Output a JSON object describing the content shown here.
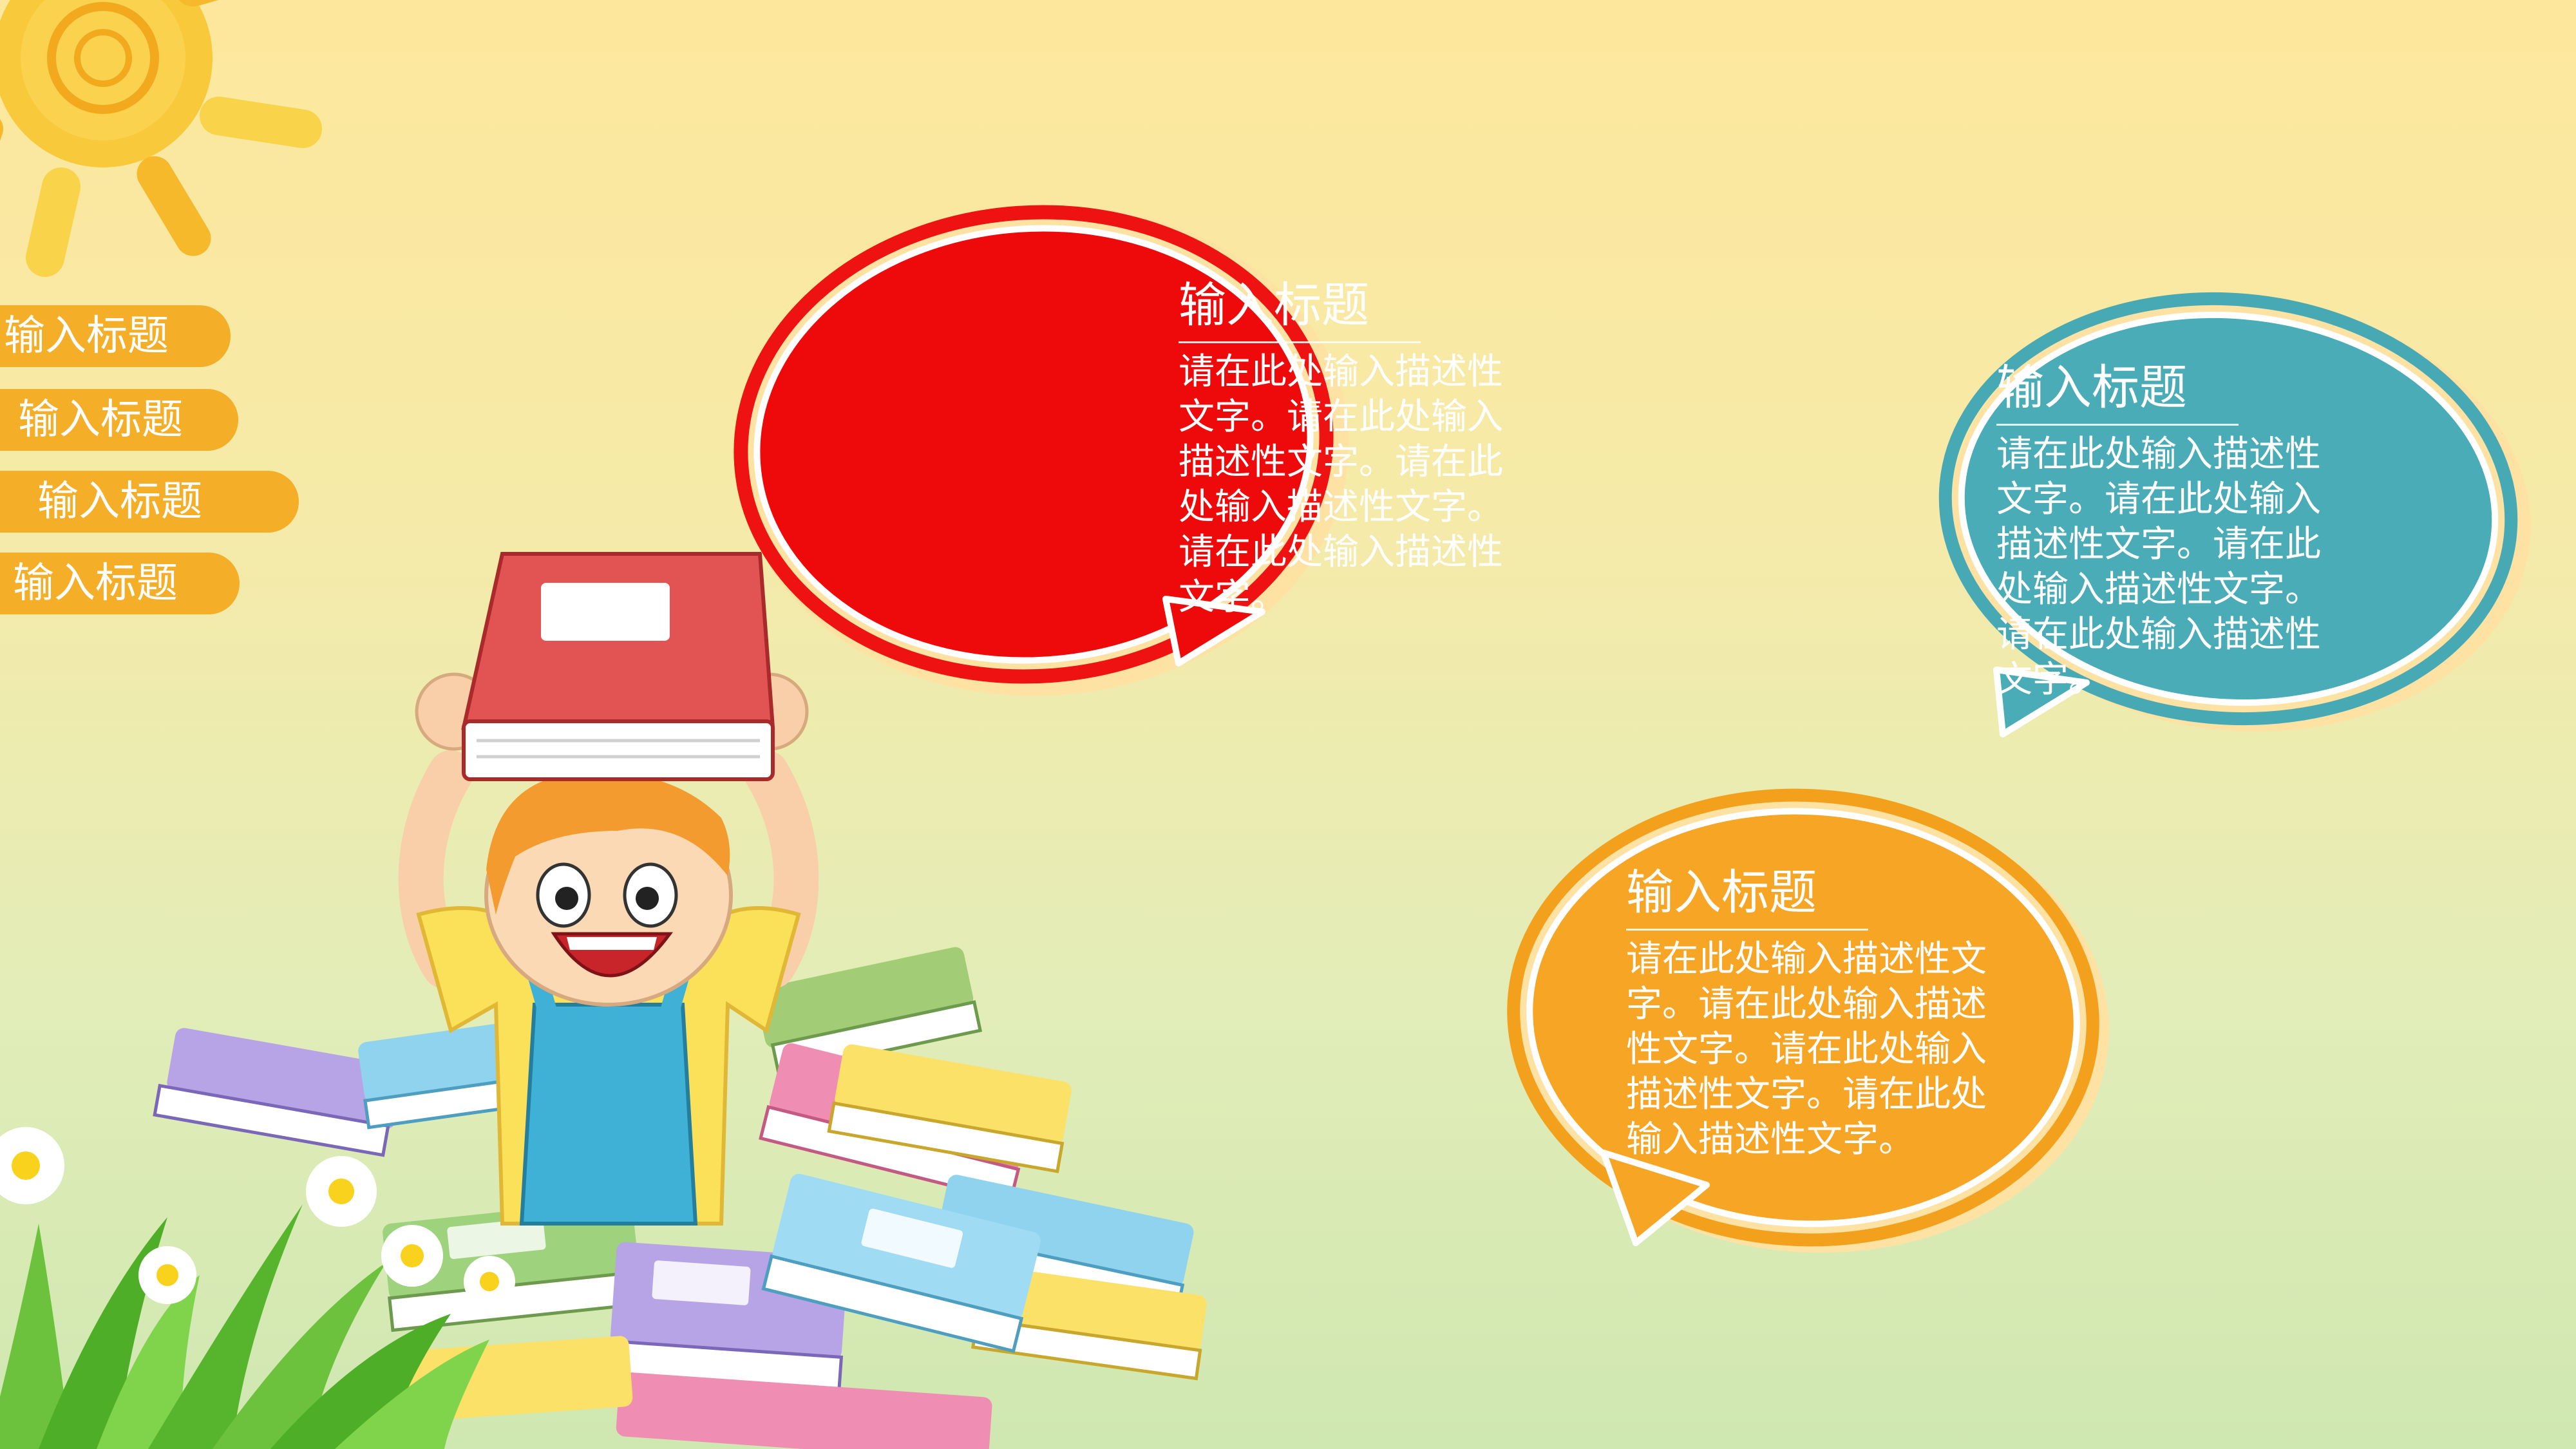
{
  "side_tabs": [
    {
      "label": "输入标题"
    },
    {
      "label": "输入标题"
    },
    {
      "label": "输入标题"
    },
    {
      "label": "输入标题"
    }
  ],
  "bubbles": {
    "red": {
      "title": "输入标题",
      "body": "请在此处输入描述性文字。请在此处输入描述性文字。请在此处输入描述性文字。请在此处输入描述性文字。",
      "color": "#ec0b0b"
    },
    "teal": {
      "title": "输入标题",
      "body": "请在此处输入描述性文字。请在此处输入描述性文字。请在此处输入描述性文字。请在此处输入描述性文字。",
      "color": "#4aacb6"
    },
    "orange": {
      "title": "输入标题",
      "body": "请在此处输入描述性文字。请在此处输入描述性文字。请在此处输入描述性文字。请在此处输入描述性文字。",
      "color": "#f6a524"
    }
  },
  "colors": {
    "tab": "#f4ae27",
    "sun": "#f7c531"
  }
}
